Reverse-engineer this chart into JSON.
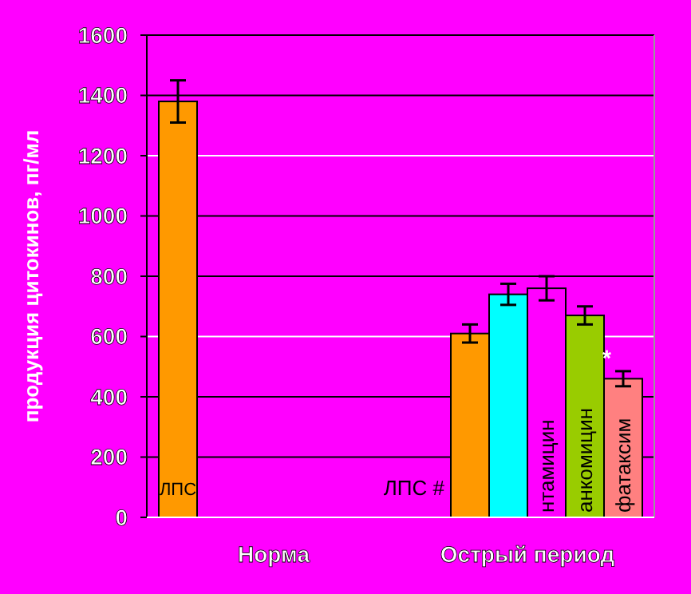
{
  "chart_data": {
    "type": "bar",
    "ylabel": "продукция цитокинов, пг/мл",
    "categories": [
      "Норма",
      "Острый период"
    ],
    "ylim": [
      0,
      1600
    ],
    "yticks": [
      0,
      200,
      400,
      600,
      800,
      1000,
      1200,
      1400,
      1600
    ],
    "grid": "y",
    "annotations": [
      "*"
    ],
    "series": [
      {
        "name": "ЛПС",
        "color": "#ff9900",
        "values": [
          1380,
          null
        ],
        "errors": [
          70,
          null
        ]
      },
      {
        "name": "ЛПС #",
        "color": "#ff9900",
        "values": [
          null,
          610
        ],
        "errors": [
          null,
          30
        ]
      },
      {
        "color": "#00ffff",
        "values": [
          null,
          740
        ],
        "errors": [
          null,
          35
        ]
      },
      {
        "name": "нтамицин",
        "color": "#ff00ff",
        "values": [
          null,
          760
        ],
        "errors": [
          null,
          40
        ]
      },
      {
        "name": "анкомицин",
        "color": "#99cc00",
        "values": [
          null,
          670
        ],
        "errors": [
          null,
          30
        ]
      },
      {
        "name": "фатаксим",
        "color": "#ff8080",
        "values": [
          null,
          460
        ],
        "errors": [
          null,
          25
        ]
      }
    ]
  }
}
